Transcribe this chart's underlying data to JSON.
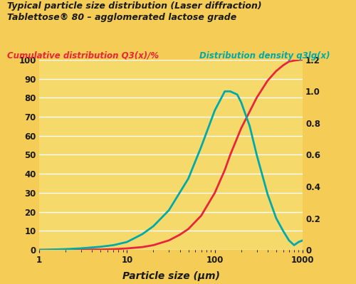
{
  "title1": "Typical particle size distribution (Laser diffraction)",
  "title2": "Tablettose® 80 – agglomerated lactose grade",
  "left_label": "Cumulative distribution Q3(x)/%",
  "right_label": "Distribution density q3lg(x)",
  "xlabel": "Particle size (µm)",
  "background_color": "#F5CC55",
  "plot_bg_color": "#F5D96B",
  "title_bg_color": "#F5E0A0",
  "grid_color": "#FFFFFF",
  "red_color": "#E8253A",
  "teal_color": "#00AAAA",
  "title_color": "#1A1A1A",
  "left_label_color": "#E8253A",
  "right_label_color": "#00AAAA",
  "ylim_left": [
    0,
    100
  ],
  "ylim_right": [
    0,
    1.2
  ],
  "xlim": [
    1,
    1000
  ],
  "cumulative_x": [
    1,
    2,
    3,
    5,
    7,
    10,
    15,
    20,
    30,
    40,
    50,
    70,
    100,
    130,
    150,
    200,
    300,
    400,
    500,
    600,
    700,
    800,
    900,
    1000
  ],
  "cumulative_y": [
    0,
    0.05,
    0.1,
    0.2,
    0.4,
    0.8,
    1.5,
    2.5,
    5,
    8,
    11,
    18,
    30,
    42,
    50,
    64,
    80,
    89,
    94,
    97,
    99,
    99.5,
    99.8,
    100
  ],
  "density_x": [
    1,
    2,
    3,
    5,
    7,
    10,
    15,
    20,
    30,
    50,
    70,
    100,
    130,
    150,
    180,
    200,
    250,
    300,
    400,
    500,
    600,
    700,
    800,
    900,
    1000
  ],
  "density_y": [
    0,
    0.005,
    0.01,
    0.02,
    0.03,
    0.05,
    0.1,
    0.15,
    0.25,
    0.45,
    0.65,
    0.88,
    1.0,
    1.0,
    0.98,
    0.93,
    0.78,
    0.6,
    0.35,
    0.2,
    0.12,
    0.06,
    0.03,
    0.05,
    0.06
  ]
}
